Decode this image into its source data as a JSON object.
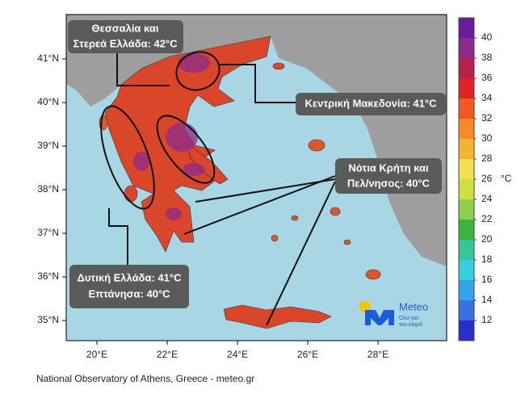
{
  "callouts": [
    {
      "lines": [
        "Θεσσαλία και",
        "Στερεά Ελλάδα: 42°C"
      ]
    },
    {
      "lines": [
        "Κεντρική Μακεδονία: 41°C"
      ]
    },
    {
      "lines": [
        "Νότια Κρήτη και",
        "Πελ/νησος: 40°C"
      ]
    },
    {
      "lines": [
        "Δυτική Ελλάδα: 41°C",
        "Επτάνησα: 40°C"
      ]
    }
  ],
  "map": {
    "lon_ticks": [
      {
        "value": 20,
        "label": "20°E"
      },
      {
        "value": 22,
        "label": "22°E"
      },
      {
        "value": 24,
        "label": "24°E"
      },
      {
        "value": 26,
        "label": "26°E"
      },
      {
        "value": 28,
        "label": "28°E"
      }
    ],
    "lat_ticks": [
      {
        "value": 41,
        "label": "41°N"
      },
      {
        "value": 40,
        "label": "40°N"
      },
      {
        "value": 39,
        "label": "39°N"
      },
      {
        "value": 38,
        "label": "38°N"
      },
      {
        "value": 37,
        "label": "37°N"
      },
      {
        "value": 36,
        "label": "36°N"
      },
      {
        "value": 35,
        "label": "35°N"
      }
    ]
  },
  "colorbar": {
    "unit": "°C",
    "range": [
      10,
      42
    ],
    "ticks": [
      12,
      14,
      16,
      18,
      20,
      22,
      24,
      26,
      28,
      30,
      32,
      34,
      36,
      38,
      40
    ],
    "colors": [
      "#2b2bd0",
      "#3a6fe0",
      "#35a5ea",
      "#35cfe0",
      "#35c79a",
      "#3db340",
      "#8fd04e",
      "#cfe042",
      "#f3e04c",
      "#f5b332",
      "#f58a2a",
      "#f05a22",
      "#e02222",
      "#b3214c",
      "#8e2a8a",
      "#6a1b9a"
    ]
  },
  "logo": {
    "name": "Meteo",
    "tagline": [
      "Όλα για",
      "τον καιρό"
    ]
  },
  "footer": "National Observatory of Athens, Greece - meteo.gr"
}
